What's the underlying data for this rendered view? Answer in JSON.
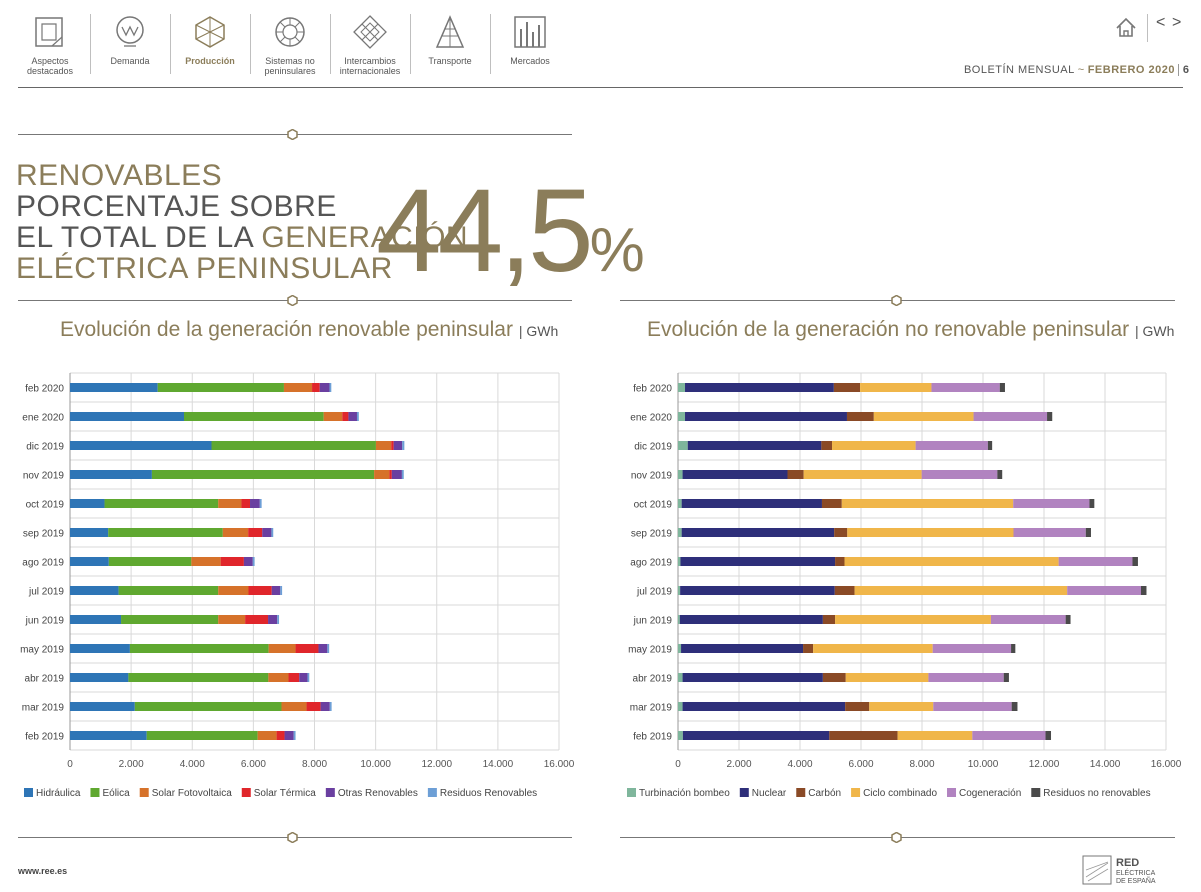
{
  "nav": {
    "items": [
      {
        "label": "Aspectos\ndestacados"
      },
      {
        "label": "Demanda"
      },
      {
        "label": "Producción"
      },
      {
        "label": "Sistemas no\npeninsulares"
      },
      {
        "label": "Intercambios\ninternacionales"
      },
      {
        "label": "Transporte"
      },
      {
        "label": "Mercados"
      }
    ],
    "prev": "<",
    "next": ">"
  },
  "header": {
    "bulletin": "BOLETÍN MENSUAL",
    "separator": "~",
    "month": "FEBRERO 2020",
    "page": "6"
  },
  "headline": {
    "line1": "RENOVABLES",
    "line2": "PORCENTAJE SOBRE",
    "line3a": "EL TOTAL DE LA ",
    "line3b": "GENERACIÓN",
    "line4": "ELÉCTRICA PENINSULAR",
    "value": "44,5",
    "percent": "%"
  },
  "colors": {
    "gold": "#8b7d5a",
    "hidraulica": "#2e75b6",
    "eolica": "#5fa830",
    "solar_fv": "#d6722a",
    "solar_term": "#e0262b",
    "otras_renov": "#6a3fa0",
    "residuos_renov": "#6d9fd6",
    "turbinacion": "#7fb69c",
    "nuclear": "#2e2f7a",
    "carbon": "#8a4a26",
    "ciclo": "#f0b64a",
    "cogeneracion": "#b183c0",
    "residuos_no_renov": "#4a4a4a"
  },
  "chart_data": [
    {
      "type": "bar",
      "orientation": "horizontal",
      "stacked": true,
      "title": "Evolución de la generación renovable peninsular",
      "unit": "GWh",
      "categories": [
        "feb 2020",
        "ene 2020",
        "dic 2019",
        "nov 2019",
        "oct 2019",
        "sep 2019",
        "ago 2019",
        "jul 2019",
        "jun 2019",
        "may 2019",
        "abr 2019",
        "mar 2019",
        "feb 2019"
      ],
      "xlim": [
        0,
        16000
      ],
      "xticks": [
        0,
        2000,
        4000,
        6000,
        8000,
        10000,
        12000,
        14000,
        16000
      ],
      "xtick_labels": [
        "0",
        "2.000",
        "4.000",
        "6.000",
        "8.000",
        "10.000",
        "12.000",
        "14.000",
        "16.000"
      ],
      "grid": true,
      "legend_position": "bottom",
      "series": [
        {
          "name": "Hidráulica",
          "color": "#2e75b6",
          "values": [
            2870,
            3730,
            4630,
            2680,
            1130,
            1250,
            1270,
            1590,
            1670,
            1960,
            1910,
            2120,
            2510
          ]
        },
        {
          "name": "Eólica",
          "color": "#5fa830",
          "values": [
            4130,
            4570,
            5380,
            7270,
            3720,
            3750,
            2700,
            3260,
            3180,
            4540,
            4580,
            4800,
            3630
          ]
        },
        {
          "name": "Solar Fotovoltaica",
          "color": "#d6722a",
          "values": [
            920,
            610,
            500,
            500,
            760,
            830,
            960,
            990,
            880,
            880,
            660,
            820,
            620
          ]
        },
        {
          "name": "Solar Térmica",
          "color": "#e0262b",
          "values": [
            250,
            200,
            80,
            80,
            280,
            460,
            760,
            760,
            750,
            750,
            350,
            460,
            260
          ]
        },
        {
          "name": "Otras Renovables",
          "color": "#6a3fa0",
          "values": [
            320,
            280,
            280,
            330,
            320,
            300,
            290,
            280,
            300,
            290,
            270,
            300,
            300
          ]
        },
        {
          "name": "Residuos Renovables",
          "color": "#6d9fd6",
          "values": [
            60,
            60,
            70,
            60,
            60,
            60,
            60,
            60,
            60,
            60,
            60,
            60,
            60
          ]
        }
      ]
    },
    {
      "type": "bar",
      "orientation": "horizontal",
      "stacked": true,
      "title": "Evolución de la generación no renovable peninsular",
      "unit": "GWh",
      "categories": [
        "feb 2020",
        "ene 2020",
        "dic 2019",
        "nov 2019",
        "oct 2019",
        "sep 2019",
        "ago 2019",
        "jul 2019",
        "jun 2019",
        "may 2019",
        "abr 2019",
        "mar 2019",
        "feb 2019"
      ],
      "xlim": [
        0,
        16000
      ],
      "xticks": [
        0,
        2000,
        4000,
        6000,
        8000,
        10000,
        12000,
        14000,
        16000
      ],
      "xtick_labels": [
        "0",
        "2.000",
        "4.000",
        "6.000",
        "8.000",
        "10.000",
        "12.000",
        "14.000",
        "16.000"
      ],
      "grid": true,
      "legend_position": "bottom",
      "series": [
        {
          "name": "Turbinación bombeo",
          "color": "#7fb69c",
          "values": [
            230,
            230,
            320,
            150,
            120,
            120,
            80,
            70,
            60,
            100,
            150,
            150,
            160
          ]
        },
        {
          "name": "Nuclear",
          "color": "#2e2f7a",
          "values": [
            4880,
            5310,
            4380,
            3440,
            4600,
            5000,
            5070,
            5070,
            4690,
            4000,
            4600,
            5330,
            4800
          ]
        },
        {
          "name": "Carbón",
          "color": "#8a4a26",
          "values": [
            860,
            880,
            350,
            530,
            650,
            430,
            310,
            650,
            400,
            330,
            750,
            790,
            2240
          ]
        },
        {
          "name": "Ciclo combinado",
          "color": "#f0b64a",
          "values": [
            2340,
            3270,
            2740,
            3870,
            5620,
            5450,
            7020,
            6970,
            5110,
            3920,
            2710,
            2100,
            2450
          ]
        },
        {
          "name": "Cogeneración",
          "color": "#b183c0",
          "values": [
            2240,
            2410,
            2370,
            2480,
            2500,
            2370,
            2420,
            2420,
            2450,
            2570,
            2470,
            2570,
            2400
          ]
        },
        {
          "name": "Residuos no renovables",
          "color": "#4a4a4a",
          "values": [
            170,
            170,
            140,
            160,
            160,
            170,
            180,
            180,
            160,
            140,
            170,
            190,
            180
          ]
        }
      ]
    }
  ],
  "footer": {
    "url": "www.ree.es",
    "logo_line1": "RED",
    "logo_line2": "ELÉCTRICA",
    "logo_line3": "DE ESPAÑA"
  }
}
